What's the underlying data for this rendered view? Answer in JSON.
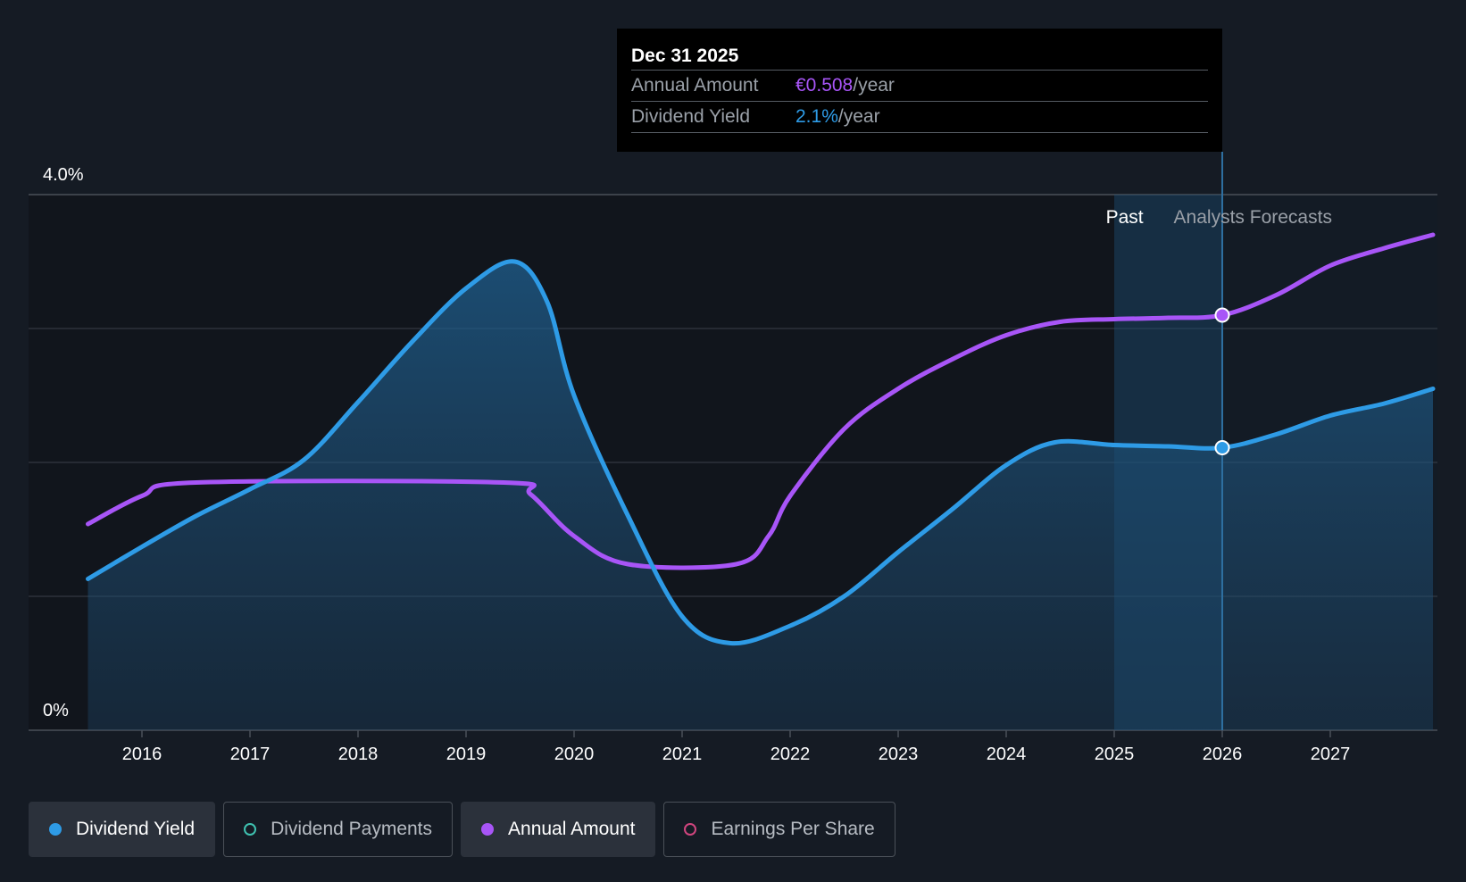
{
  "tooltip": {
    "date": "Dec 31 2025",
    "rows": [
      {
        "label": "Annual Amount",
        "value": "€0.508",
        "unit": "/year"
      },
      {
        "label": "Dividend Yield",
        "value": "2.1%",
        "unit": "/year"
      }
    ]
  },
  "region_labels": {
    "past": "Past",
    "forecast": "Analysts Forecasts"
  },
  "legend": [
    {
      "label": "Dividend Yield",
      "color": "#2e9be6",
      "active": true,
      "filled": true
    },
    {
      "label": "Dividend Payments",
      "color": "#3fc1b0",
      "active": false,
      "filled": false
    },
    {
      "label": "Annual Amount",
      "color": "#a855f7",
      "active": true,
      "filled": true
    },
    {
      "label": "Earnings Per Share",
      "color": "#d0457e",
      "active": false,
      "filled": false
    }
  ],
  "colors": {
    "yield": "#2e9be6",
    "amount": "#a855f7",
    "grid": "#3a404a"
  },
  "chart_data": {
    "type": "line",
    "x_ticks": [
      "2016",
      "2017",
      "2018",
      "2019",
      "2020",
      "2021",
      "2022",
      "2023",
      "2024",
      "2025",
      "2026",
      "2027"
    ],
    "y_tick_labels": [
      "4.0%",
      "0%"
    ],
    "ylim": [
      0,
      4.0
    ],
    "xlim": [
      2015.5,
      2027.95
    ],
    "grid": true,
    "past_end": 2026.0,
    "series": [
      {
        "name": "Dividend Yield",
        "points": [
          [
            2015.5,
            1.13
          ],
          [
            2016.0,
            1.37
          ],
          [
            2016.5,
            1.6
          ],
          [
            2017.0,
            1.8
          ],
          [
            2017.5,
            2.02
          ],
          [
            2018.0,
            2.45
          ],
          [
            2018.5,
            2.9
          ],
          [
            2019.0,
            3.3
          ],
          [
            2019.45,
            3.5
          ],
          [
            2019.75,
            3.2
          ],
          [
            2020.0,
            2.5
          ],
          [
            2020.5,
            1.6
          ],
          [
            2021.0,
            0.85
          ],
          [
            2021.45,
            0.65
          ],
          [
            2022.0,
            0.78
          ],
          [
            2022.5,
            1.0
          ],
          [
            2023.0,
            1.33
          ],
          [
            2023.5,
            1.65
          ],
          [
            2024.0,
            1.98
          ],
          [
            2024.45,
            2.15
          ],
          [
            2025.0,
            2.13
          ],
          [
            2025.5,
            2.12
          ],
          [
            2026.0,
            2.11
          ],
          [
            2026.5,
            2.21
          ],
          [
            2027.0,
            2.35
          ],
          [
            2027.5,
            2.44
          ],
          [
            2027.95,
            2.55
          ]
        ]
      },
      {
        "name": "Annual Amount",
        "points": [
          [
            2015.5,
            1.54
          ],
          [
            2016.0,
            1.75
          ],
          [
            2016.5,
            1.85
          ],
          [
            2019.35,
            1.85
          ],
          [
            2019.6,
            1.76
          ],
          [
            2020.0,
            1.45
          ],
          [
            2020.5,
            1.24
          ],
          [
            2021.5,
            1.24
          ],
          [
            2021.8,
            1.45
          ],
          [
            2022.0,
            1.75
          ],
          [
            2022.5,
            2.25
          ],
          [
            2023.0,
            2.55
          ],
          [
            2023.5,
            2.77
          ],
          [
            2024.0,
            2.95
          ],
          [
            2024.5,
            3.05
          ],
          [
            2025.0,
            3.07
          ],
          [
            2025.5,
            3.08
          ],
          [
            2026.0,
            3.1
          ],
          [
            2026.5,
            3.25
          ],
          [
            2027.0,
            3.47
          ],
          [
            2027.5,
            3.6
          ],
          [
            2027.95,
            3.7
          ]
        ]
      }
    ],
    "tooltip_x": 2026.0
  }
}
